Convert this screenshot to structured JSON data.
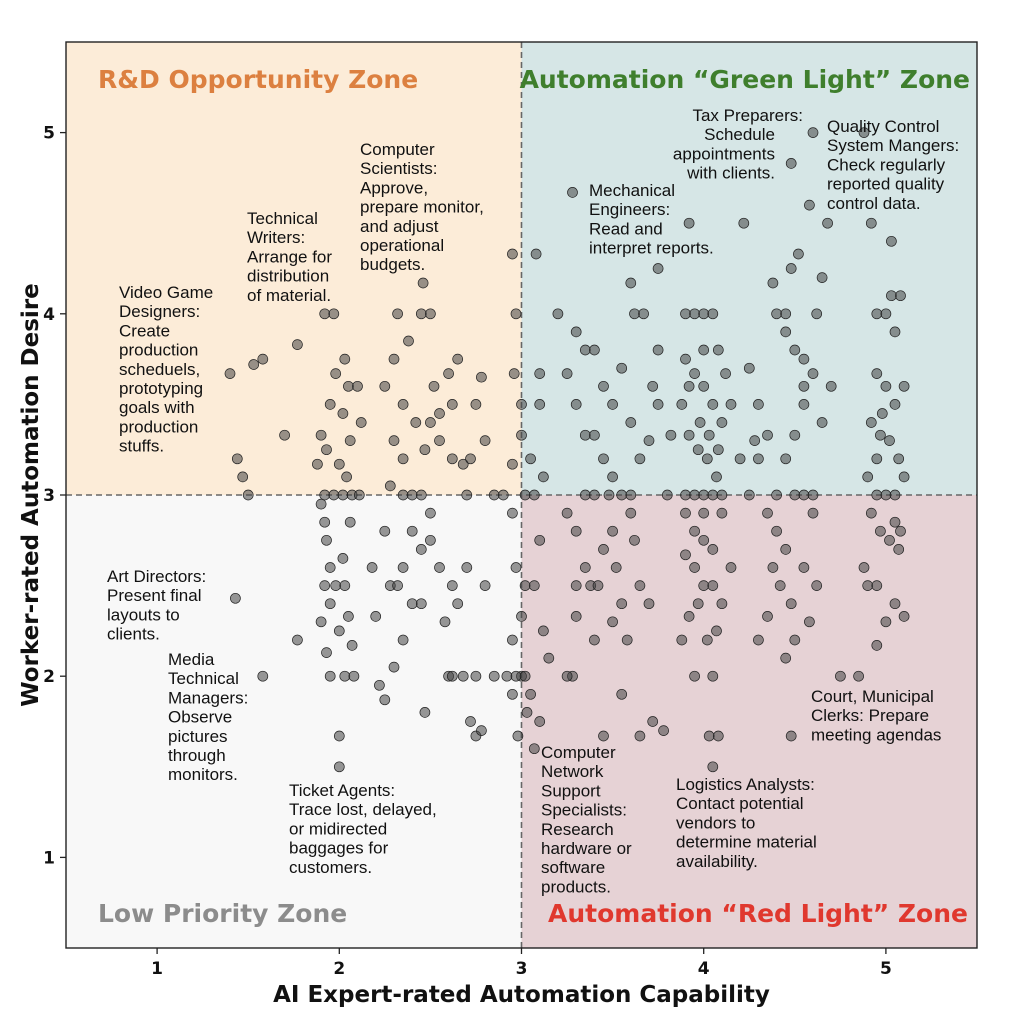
{
  "chart_data": {
    "type": "scatter",
    "xlabel": "AI Expert-rated Automation Capability",
    "ylabel": "Worker-rated Automation Desire",
    "xlim": [
      0.5,
      5.5
    ],
    "ylim": [
      0.5,
      5.5
    ],
    "xticks": [
      1,
      2,
      3,
      4,
      5
    ],
    "yticks": [
      1,
      2,
      3,
      4,
      5
    ],
    "grid": false,
    "divider": {
      "x": 3,
      "y": 3,
      "style": "dashed"
    },
    "zones": [
      {
        "key": "rd",
        "label": "R&D Opportunity Zone",
        "quadrant": "top-left",
        "fill": "#fcecd8",
        "color": "#dc8040"
      },
      {
        "key": "green",
        "label": "Automation “Green Light” Zone",
        "quadrant": "top-right",
        "fill": "#d6e6e6",
        "color": "#3f7f2d"
      },
      {
        "key": "low",
        "label": "Low Priority Zone",
        "quadrant": "bottom-left",
        "fill": "#f8f8f8",
        "color": "#8c8c8c"
      },
      {
        "key": "red",
        "label": "Automation “Red Light” Zone",
        "quadrant": "bottom-right",
        "fill": "#e6d2d5",
        "color": "#e0382e"
      }
    ],
    "annotations": [
      {
        "lines": [
          "Video Game",
          "Designers:",
          "Create",
          "production",
          "scheduels,",
          "prototyping",
          "goals with",
          "production",
          "stuffs."
        ]
      },
      {
        "lines": [
          "Technical",
          "Writers:",
          "Arrange for",
          "distribution",
          "of material."
        ]
      },
      {
        "lines": [
          "Computer",
          "Scientists:",
          "Approve,",
          "prepare monitor,",
          "and adjust",
          "operational",
          "budgets."
        ]
      },
      {
        "lines": [
          "Mechanical",
          "Engineers:",
          "Read and",
          "interpret reports."
        ]
      },
      {
        "lines": [
          "Tax Preparers:",
          "Schedule",
          "appointments",
          "with clients."
        ]
      },
      {
        "lines": [
          "Quality Control",
          "System Mangers:",
          "Check regularly",
          "reported quality",
          "control data."
        ]
      },
      {
        "lines": [
          "Art Directors:",
          "Present final",
          "layouts to",
          "clients."
        ]
      },
      {
        "lines": [
          "Media",
          "Technical",
          "Managers:",
          "Observe",
          "pictures",
          "through",
          "monitors."
        ]
      },
      {
        "lines": [
          "Ticket Agents:",
          "Trace lost, delayed,",
          "or midirected",
          "baggages for",
          "customers."
        ]
      },
      {
        "lines": [
          "Computer",
          "Network",
          "Support",
          "Specialists:",
          "Research",
          "hardware or",
          "software",
          "products."
        ]
      },
      {
        "lines": [
          "Logistics Analysts:",
          "Contact potential",
          "vendors to",
          "determine material",
          "availability."
        ]
      },
      {
        "lines": [
          "Court, Municipal",
          "Clerks: Prepare",
          "meeting agendas"
        ]
      }
    ],
    "point_color": "#444444",
    "points": [
      [
        1.4,
        3.67
      ],
      [
        1.44,
        3.2
      ],
      [
        1.47,
        3.1
      ],
      [
        1.5,
        3.0
      ],
      [
        1.53,
        3.72
      ],
      [
        1.58,
        3.75
      ],
      [
        1.7,
        3.33
      ],
      [
        1.77,
        3.83
      ],
      [
        1.43,
        2.43
      ],
      [
        1.58,
        2.0
      ],
      [
        1.77,
        2.2
      ],
      [
        1.92,
        4.0
      ],
      [
        1.97,
        4.0
      ],
      [
        1.98,
        3.67
      ],
      [
        1.95,
        3.5
      ],
      [
        1.9,
        3.33
      ],
      [
        1.93,
        3.25
      ],
      [
        1.88,
        3.17
      ],
      [
        1.92,
        3.0
      ],
      [
        1.97,
        3.0
      ],
      [
        2.02,
        3.0
      ],
      [
        2.07,
        3.0
      ],
      [
        2.11,
        3.0
      ],
      [
        2.03,
        3.75
      ],
      [
        2.05,
        3.6
      ],
      [
        2.1,
        3.6
      ],
      [
        2.02,
        3.45
      ],
      [
        2.06,
        3.3
      ],
      [
        2.0,
        3.17
      ],
      [
        2.04,
        3.1
      ],
      [
        2.12,
        3.4
      ],
      [
        1.9,
        2.95
      ],
      [
        1.92,
        2.85
      ],
      [
        1.93,
        2.75
      ],
      [
        1.95,
        2.6
      ],
      [
        1.92,
        2.5
      ],
      [
        1.98,
        2.5
      ],
      [
        2.03,
        2.5
      ],
      [
        1.9,
        2.3
      ],
      [
        1.95,
        2.4
      ],
      [
        2.02,
        2.65
      ],
      [
        2.06,
        2.85
      ],
      [
        2.0,
        2.25
      ],
      [
        2.05,
        2.33
      ],
      [
        2.07,
        2.17
      ],
      [
        1.93,
        2.13
      ],
      [
        1.95,
        2.0
      ],
      [
        2.03,
        2.0
      ],
      [
        2.08,
        2.0
      ],
      [
        2.0,
        1.67
      ],
      [
        2.0,
        1.5
      ],
      [
        2.25,
        3.6
      ],
      [
        2.3,
        3.75
      ],
      [
        2.35,
        3.5
      ],
      [
        2.3,
        3.3
      ],
      [
        2.35,
        3.2
      ],
      [
        2.28,
        3.05
      ],
      [
        2.35,
        3.0
      ],
      [
        2.4,
        3.0
      ],
      [
        2.45,
        3.0
      ],
      [
        2.38,
        3.85
      ],
      [
        2.42,
        3.4
      ],
      [
        2.47,
        3.25
      ],
      [
        2.46,
        4.17
      ],
      [
        2.45,
        4.0
      ],
      [
        2.5,
        4.0
      ],
      [
        2.52,
        3.6
      ],
      [
        2.5,
        3.4
      ],
      [
        2.55,
        3.45
      ],
      [
        2.55,
        3.3
      ],
      [
        2.6,
        3.67
      ],
      [
        2.65,
        3.75
      ],
      [
        2.62,
        3.2
      ],
      [
        2.68,
        3.17
      ],
      [
        2.7,
        3.0
      ],
      [
        2.72,
        3.2
      ],
      [
        2.78,
        3.65
      ],
      [
        2.75,
        3.5
      ],
      [
        2.8,
        3.3
      ],
      [
        2.85,
        3.0
      ],
      [
        2.9,
        3.0
      ],
      [
        2.62,
        3.5
      ],
      [
        2.32,
        4.0
      ],
      [
        2.25,
        2.8
      ],
      [
        2.28,
        2.5
      ],
      [
        2.32,
        2.5
      ],
      [
        2.35,
        2.2
      ],
      [
        2.4,
        2.4
      ],
      [
        2.3,
        2.05
      ],
      [
        2.22,
        1.95
      ],
      [
        2.25,
        1.87
      ],
      [
        2.45,
        2.4
      ],
      [
        2.5,
        2.75
      ],
      [
        2.55,
        2.6
      ],
      [
        2.47,
        1.8
      ],
      [
        2.58,
        2.3
      ],
      [
        2.62,
        2.5
      ],
      [
        2.65,
        2.4
      ],
      [
        2.7,
        2.6
      ],
      [
        2.6,
        2.0
      ],
      [
        2.62,
        2.0
      ],
      [
        2.68,
        2.0
      ],
      [
        2.75,
        2.0
      ],
      [
        2.72,
        1.75
      ],
      [
        2.75,
        1.67
      ],
      [
        2.78,
        1.7
      ],
      [
        2.8,
        2.5
      ],
      [
        2.85,
        2.0
      ],
      [
        2.35,
        2.6
      ],
      [
        2.4,
        2.8
      ],
      [
        2.45,
        2.7
      ],
      [
        2.5,
        2.9
      ],
      [
        2.2,
        2.33
      ],
      [
        2.18,
        2.6
      ],
      [
        2.95,
        4.33
      ],
      [
        3.08,
        4.33
      ],
      [
        2.97,
        4.0
      ],
      [
        2.96,
        3.67
      ],
      [
        3.0,
        3.5
      ],
      [
        3.0,
        3.33
      ],
      [
        2.95,
        3.17
      ],
      [
        3.02,
        3.0
      ],
      [
        3.07,
        3.0
      ],
      [
        3.1,
        3.67
      ],
      [
        3.1,
        3.5
      ],
      [
        3.05,
        3.2
      ],
      [
        3.12,
        3.1
      ],
      [
        2.95,
        2.9
      ],
      [
        2.97,
        2.6
      ],
      [
        3.02,
        2.5
      ],
      [
        3.07,
        2.5
      ],
      [
        3.0,
        2.33
      ],
      [
        2.95,
        2.2
      ],
      [
        3.0,
        2.0
      ],
      [
        2.92,
        2.0
      ],
      [
        2.97,
        2.0
      ],
      [
        3.02,
        2.0
      ],
      [
        3.05,
        1.9
      ],
      [
        3.03,
        1.8
      ],
      [
        3.1,
        1.75
      ],
      [
        2.98,
        1.67
      ],
      [
        3.07,
        1.6
      ],
      [
        3.1,
        2.75
      ],
      [
        3.12,
        2.25
      ],
      [
        3.15,
        2.1
      ],
      [
        2.95,
        1.9
      ],
      [
        3.28,
        4.67
      ],
      [
        3.2,
        4.0
      ],
      [
        3.3,
        3.9
      ],
      [
        3.35,
        3.8
      ],
      [
        3.4,
        3.8
      ],
      [
        3.45,
        3.6
      ],
      [
        3.5,
        3.5
      ],
      [
        3.55,
        3.7
      ],
      [
        3.6,
        3.4
      ],
      [
        3.25,
        3.67
      ],
      [
        3.3,
        3.5
      ],
      [
        3.35,
        3.33
      ],
      [
        3.4,
        3.33
      ],
      [
        3.45,
        3.2
      ],
      [
        3.5,
        3.1
      ],
      [
        3.55,
        3.0
      ],
      [
        3.6,
        3.0
      ],
      [
        3.62,
        4.0
      ],
      [
        3.67,
        4.0
      ],
      [
        3.6,
        4.17
      ],
      [
        3.75,
        4.25
      ],
      [
        3.75,
        3.8
      ],
      [
        3.72,
        3.6
      ],
      [
        3.7,
        3.3
      ],
      [
        3.75,
        3.5
      ],
      [
        3.65,
        3.2
      ],
      [
        3.8,
        3.0
      ],
      [
        3.82,
        3.33
      ],
      [
        3.35,
        3.0
      ],
      [
        3.4,
        3.0
      ],
      [
        3.48,
        3.0
      ],
      [
        3.25,
        2.9
      ],
      [
        3.3,
        2.8
      ],
      [
        3.35,
        2.6
      ],
      [
        3.3,
        2.5
      ],
      [
        3.38,
        2.5
      ],
      [
        3.42,
        2.5
      ],
      [
        3.45,
        2.7
      ],
      [
        3.5,
        2.8
      ],
      [
        3.52,
        2.6
      ],
      [
        3.55,
        2.4
      ],
      [
        3.58,
        2.2
      ],
      [
        3.6,
        2.9
      ],
      [
        3.62,
        2.75
      ],
      [
        3.65,
        2.5
      ],
      [
        3.7,
        2.4
      ],
      [
        3.28,
        2.0
      ],
      [
        3.25,
        2.0
      ],
      [
        3.45,
        1.67
      ],
      [
        3.55,
        1.9
      ],
      [
        3.65,
        1.67
      ],
      [
        3.72,
        1.75
      ],
      [
        3.78,
        1.7
      ],
      [
        3.4,
        2.2
      ],
      [
        3.3,
        2.33
      ],
      [
        3.5,
        2.3
      ],
      [
        3.92,
        4.5
      ],
      [
        3.9,
        4.0
      ],
      [
        3.95,
        4.0
      ],
      [
        4.0,
        4.0
      ],
      [
        4.05,
        4.0
      ],
      [
        4.08,
        3.8
      ],
      [
        3.9,
        3.75
      ],
      [
        3.95,
        3.67
      ],
      [
        4.0,
        3.6
      ],
      [
        4.05,
        3.5
      ],
      [
        4.1,
        3.4
      ],
      [
        3.92,
        3.33
      ],
      [
        3.97,
        3.25
      ],
      [
        4.02,
        3.2
      ],
      [
        4.07,
        3.1
      ],
      [
        3.9,
        3.0
      ],
      [
        3.95,
        3.0
      ],
      [
        4.0,
        3.0
      ],
      [
        4.05,
        3.0
      ],
      [
        4.1,
        3.0
      ],
      [
        3.92,
        3.6
      ],
      [
        3.98,
        3.4
      ],
      [
        4.03,
        3.33
      ],
      [
        4.08,
        3.25
      ],
      [
        4.12,
        3.67
      ],
      [
        4.15,
        3.5
      ],
      [
        3.88,
        3.5
      ],
      [
        4.0,
        3.8
      ],
      [
        3.9,
        2.9
      ],
      [
        3.95,
        2.8
      ],
      [
        4.0,
        2.75
      ],
      [
        4.05,
        2.7
      ],
      [
        3.9,
        2.67
      ],
      [
        3.95,
        2.6
      ],
      [
        4.0,
        2.5
      ],
      [
        4.05,
        2.5
      ],
      [
        4.1,
        2.4
      ],
      [
        3.92,
        2.33
      ],
      [
        3.97,
        2.4
      ],
      [
        4.02,
        2.2
      ],
      [
        4.07,
        2.25
      ],
      [
        3.95,
        2.0
      ],
      [
        4.05,
        2.0
      ],
      [
        4.03,
        1.67
      ],
      [
        4.08,
        1.67
      ],
      [
        4.05,
        1.5
      ],
      [
        4.1,
        2.9
      ],
      [
        4.15,
        2.6
      ],
      [
        3.88,
        2.2
      ],
      [
        4.0,
        2.9
      ],
      [
        4.22,
        4.5
      ],
      [
        4.25,
        3.7
      ],
      [
        4.3,
        3.5
      ],
      [
        4.35,
        3.33
      ],
      [
        4.3,
        3.2
      ],
      [
        4.25,
        3.0
      ],
      [
        4.28,
        3.3
      ],
      [
        4.2,
        3.2
      ],
      [
        4.38,
        4.17
      ],
      [
        4.4,
        4.0
      ],
      [
        4.45,
        4.0
      ],
      [
        4.5,
        3.8
      ],
      [
        4.55,
        3.6
      ],
      [
        4.6,
        3.67
      ],
      [
        4.55,
        3.5
      ],
      [
        4.5,
        3.33
      ],
      [
        4.45,
        3.2
      ],
      [
        4.4,
        3.0
      ],
      [
        4.5,
        3.0
      ],
      [
        4.55,
        3.0
      ],
      [
        4.6,
        3.0
      ],
      [
        4.65,
        3.4
      ],
      [
        4.62,
        4.0
      ],
      [
        4.65,
        4.2
      ],
      [
        4.7,
        3.6
      ],
      [
        4.52,
        4.33
      ],
      [
        4.48,
        4.25
      ],
      [
        4.48,
        4.83
      ],
      [
        4.58,
        4.6
      ],
      [
        4.6,
        5.0
      ],
      [
        4.68,
        4.5
      ],
      [
        4.45,
        3.9
      ],
      [
        4.55,
        3.75
      ],
      [
        4.35,
        2.9
      ],
      [
        4.4,
        2.8
      ],
      [
        4.45,
        2.7
      ],
      [
        4.42,
        2.5
      ],
      [
        4.48,
        2.4
      ],
      [
        4.5,
        2.2
      ],
      [
        4.45,
        2.1
      ],
      [
        4.48,
        1.67
      ],
      [
        4.55,
        2.6
      ],
      [
        4.6,
        2.9
      ],
      [
        4.58,
        2.3
      ],
      [
        4.62,
        2.5
      ],
      [
        4.35,
        2.33
      ],
      [
        4.38,
        2.6
      ],
      [
        4.3,
        2.2
      ],
      [
        4.88,
        5.0
      ],
      [
        4.92,
        4.5
      ],
      [
        5.03,
        4.4
      ],
      [
        5.03,
        4.1
      ],
      [
        5.08,
        4.1
      ],
      [
        4.95,
        4.0
      ],
      [
        5.0,
        4.0
      ],
      [
        5.05,
        3.9
      ],
      [
        4.95,
        3.67
      ],
      [
        5.0,
        3.6
      ],
      [
        5.05,
        3.5
      ],
      [
        5.1,
        3.6
      ],
      [
        4.92,
        3.4
      ],
      [
        4.97,
        3.33
      ],
      [
        5.02,
        3.3
      ],
      [
        5.07,
        3.2
      ],
      [
        4.9,
        3.1
      ],
      [
        4.95,
        3.0
      ],
      [
        5.0,
        3.0
      ],
      [
        5.05,
        3.0
      ],
      [
        4.95,
        3.2
      ],
      [
        5.1,
        3.1
      ],
      [
        4.98,
        3.45
      ],
      [
        4.92,
        2.9
      ],
      [
        4.97,
        2.8
      ],
      [
        5.02,
        2.75
      ],
      [
        5.07,
        2.7
      ],
      [
        4.9,
        2.5
      ],
      [
        4.95,
        2.5
      ],
      [
        5.0,
        2.3
      ],
      [
        4.95,
        2.17
      ],
      [
        5.05,
        2.4
      ],
      [
        5.1,
        2.33
      ],
      [
        4.85,
        2.0
      ],
      [
        4.75,
        2.0
      ],
      [
        4.88,
        2.6
      ],
      [
        5.05,
        2.85
      ],
      [
        5.08,
        2.8
      ]
    ]
  }
}
